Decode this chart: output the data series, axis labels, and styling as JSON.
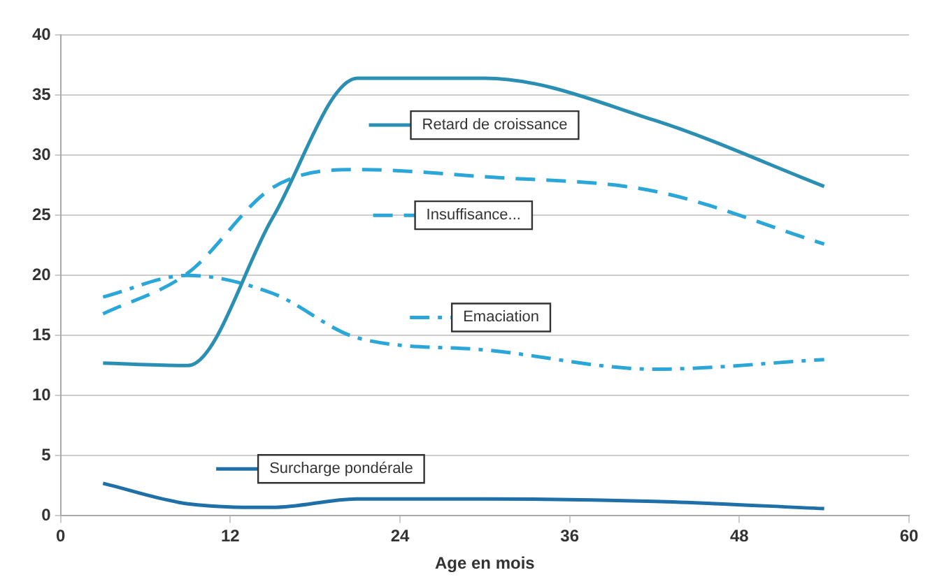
{
  "chart_data": {
    "type": "line",
    "xlabel": "Age en mois",
    "x": [
      3,
      9,
      15,
      21,
      30,
      42,
      54
    ],
    "series": [
      {
        "name": "Retard de croissance",
        "color": "#2b8fb3",
        "line_style": "solid",
        "values": [
          12.7,
          12.5,
          24.8,
          36.4,
          36.4,
          32.9,
          27.4
        ]
      },
      {
        "name": "Insuffisance...",
        "color": "#2aa6d8",
        "line_style": "dashed",
        "values": [
          16.8,
          20.2,
          27.3,
          28.8,
          28.2,
          27.0,
          22.6
        ]
      },
      {
        "name": "Emaciation",
        "color": "#2aa6d8",
        "line_style": "dashdot",
        "values": [
          18.2,
          20.0,
          18.5,
          14.8,
          13.8,
          12.2,
          13.0
        ]
      },
      {
        "name": "Surcharge pondérale",
        "color": "#1f6fa8",
        "line_style": "solid",
        "values": [
          2.7,
          1.0,
          0.7,
          1.4,
          1.4,
          1.2,
          0.6
        ]
      }
    ],
    "xlim": [
      0,
      60
    ],
    "xticks": [
      0,
      12,
      24,
      36,
      48,
      60
    ],
    "ylim": [
      0,
      40
    ],
    "yticks": [
      0,
      5,
      10,
      15,
      20,
      25,
      30,
      35,
      40
    ],
    "grid": "y",
    "legend": "center",
    "marker": "none"
  }
}
